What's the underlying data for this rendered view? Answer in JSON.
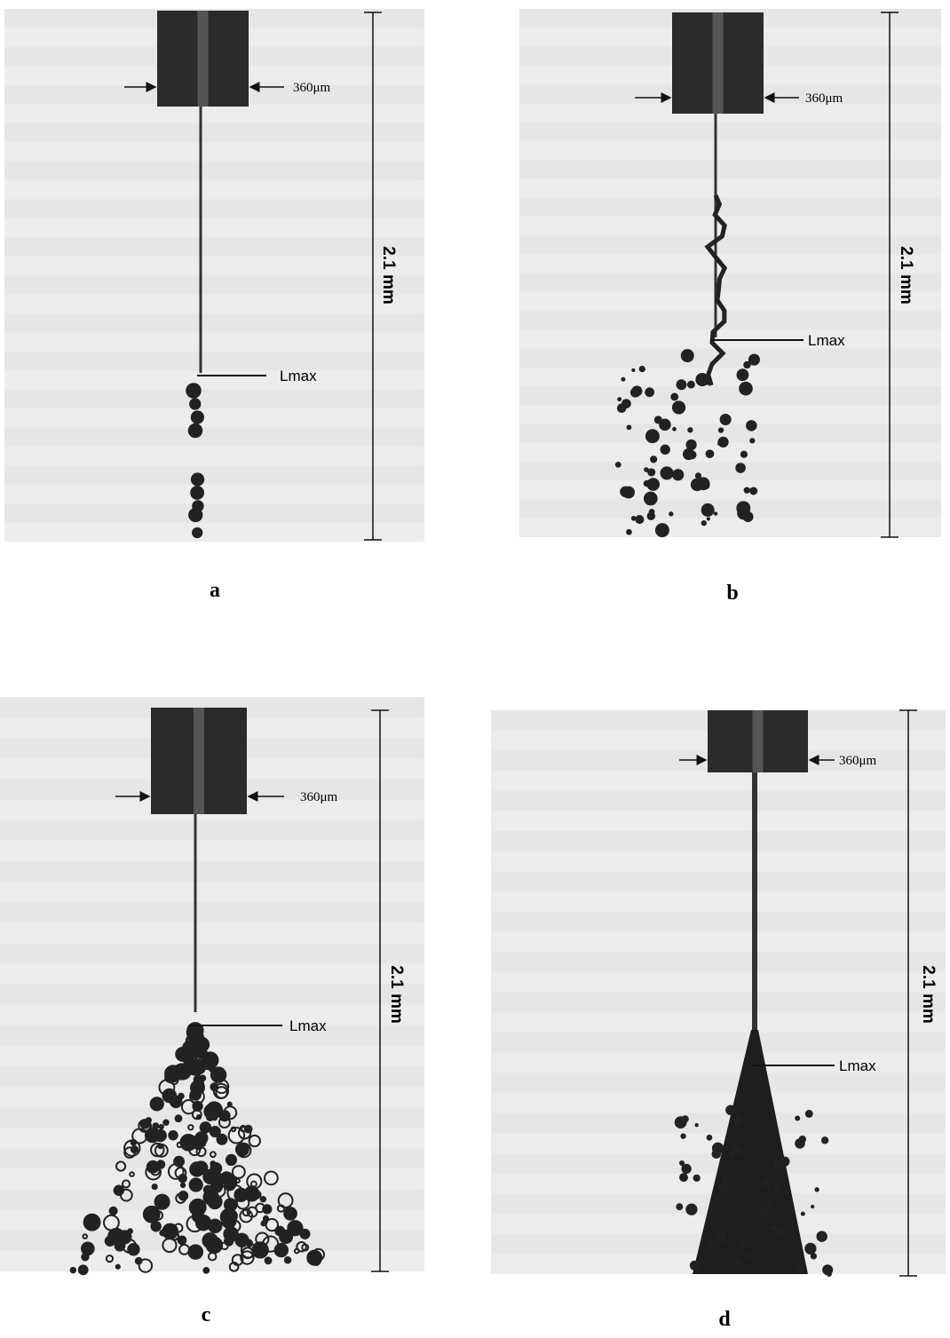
{
  "panels": [
    {
      "label": "a",
      "nozzle_width": "360μm",
      "scale": "2.1 mm",
      "marker": "Lmax"
    },
    {
      "label": "b",
      "nozzle_width": "360μm",
      "scale": "2.1 mm",
      "marker": "Lmax"
    },
    {
      "label": "c",
      "nozzle_width": "360μm",
      "scale": "2.1 mm",
      "marker": "Lmax"
    },
    {
      "label": "d",
      "nozzle_width": "360μm",
      "scale": "2.1 mm",
      "marker": "Lmax"
    }
  ]
}
